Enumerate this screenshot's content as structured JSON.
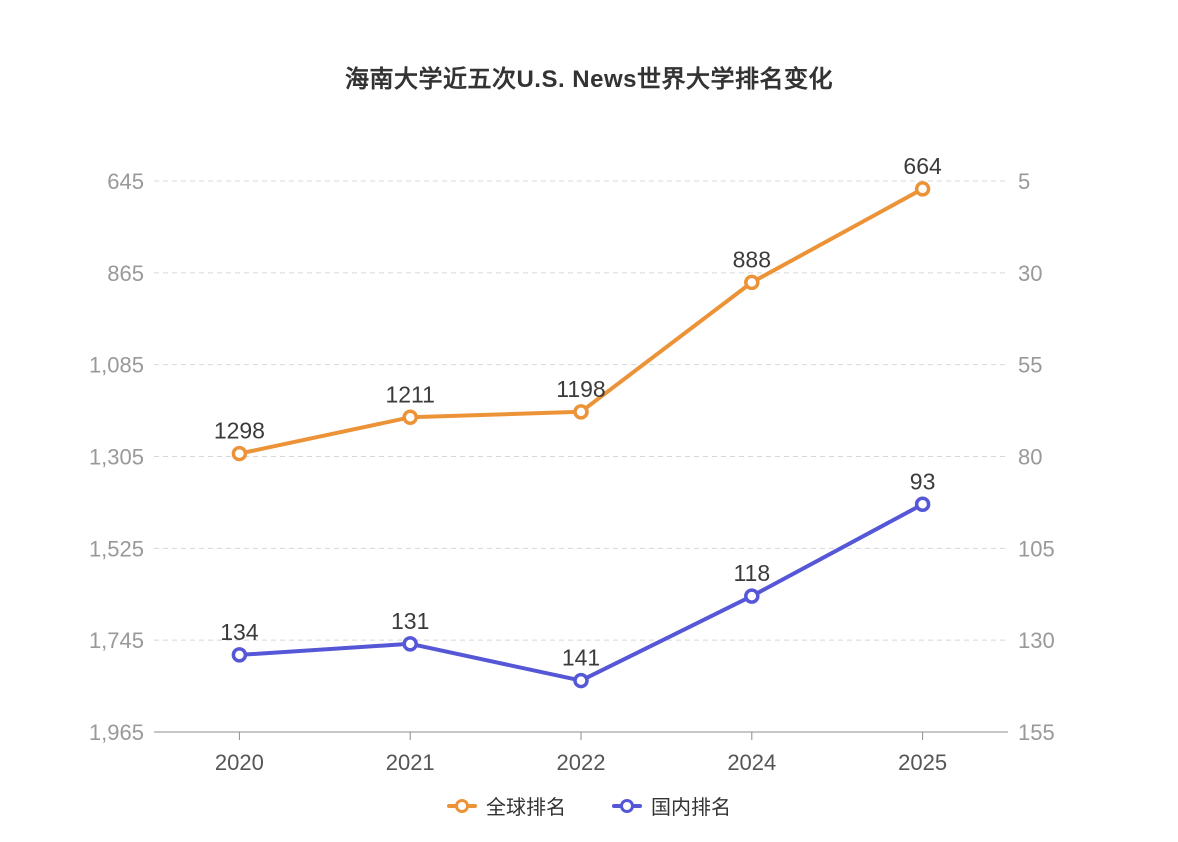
{
  "title": "海南大学近五次U.S. News世界大学排名变化",
  "chart_data": {
    "type": "line",
    "title": "海南大学近五次U.S. News世界大学排名变化",
    "categories": [
      "2020",
      "2021",
      "2022",
      "2024",
      "2025"
    ],
    "series": [
      {
        "key": "global",
        "name": "全球排名",
        "axis": "left",
        "color": "#EC9338",
        "values": [
          1298,
          1211,
          1198,
          888,
          664
        ]
      },
      {
        "key": "domestic",
        "name": "国内排名",
        "axis": "right",
        "color": "#5557D7",
        "values": [
          134,
          131,
          141,
          118,
          93
        ]
      }
    ],
    "left_axis": {
      "min": 645,
      "max": 1965,
      "tick_labels": [
        "645",
        "865",
        "1,085",
        "1,305",
        "1,525",
        "1,745",
        "1,965"
      ],
      "note": "ranking axis, better (smaller) rank at top"
    },
    "right_axis": {
      "min": 5,
      "max": 155,
      "tick_labels": [
        "5",
        "30",
        "55",
        "80",
        "105",
        "130",
        "155"
      ]
    },
    "grid": "horizontal dashed gridlines, solid bottom axis line",
    "legend_position": "bottom",
    "data_labels": "shown above each point"
  },
  "legend": {
    "items": [
      {
        "key": "global",
        "label": "全球排名",
        "color": "#EC9338"
      },
      {
        "key": "domestic",
        "label": "国内排名",
        "color": "#5557D7"
      }
    ]
  },
  "colors": {
    "background": "#FFFFFF",
    "title": "#333333",
    "grid_line": "#D8D8D8",
    "axis_line": "#8C8C8C",
    "y_axis_label": "#999999",
    "x_axis_label": "#555555",
    "data_label": "#3B3B3B",
    "series_global": "#EC9338",
    "series_domestic": "#5557D7",
    "marker_fill": "#FFFFFF"
  }
}
